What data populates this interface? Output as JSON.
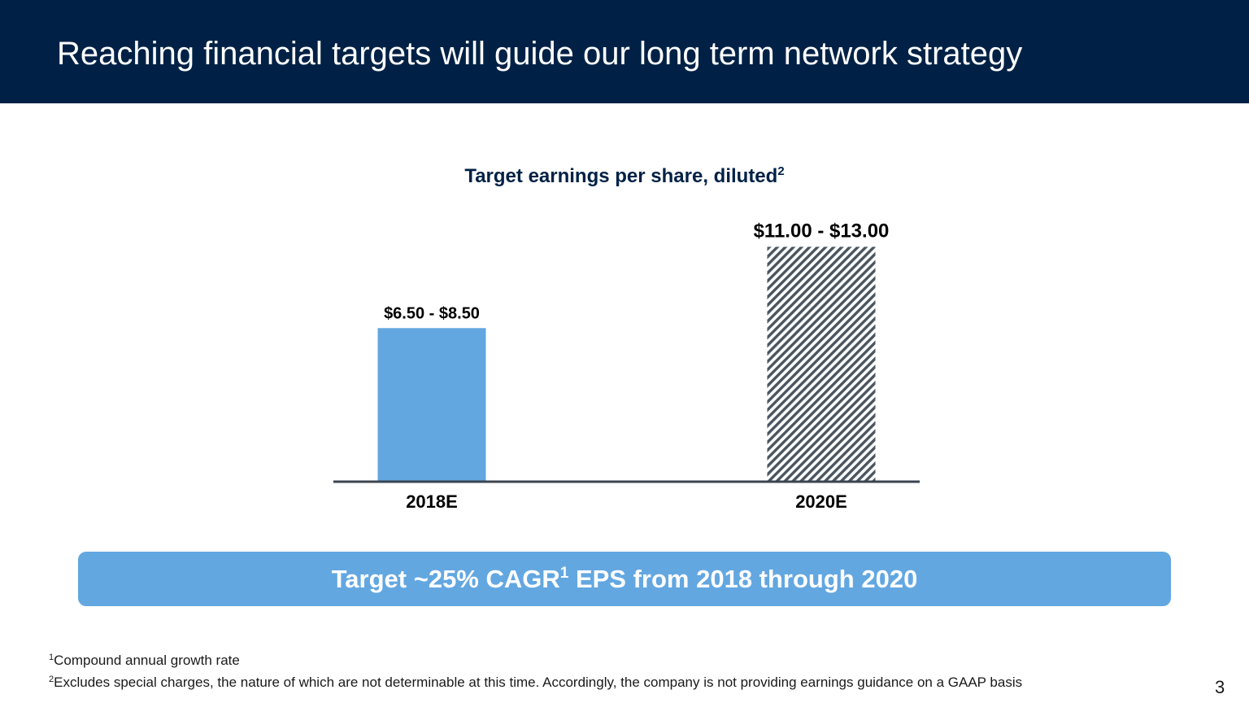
{
  "header": {
    "title": "Reaching financial targets will guide our long term network strategy"
  },
  "chart_title": {
    "text": "Target earnings per share, diluted",
    "sup": "2"
  },
  "chart_data": {
    "type": "bar",
    "title": "Target earnings per share, diluted",
    "categories": [
      "2018E",
      "2020E"
    ],
    "ranges": [
      [
        6.5,
        8.5
      ],
      [
        11.0,
        13.0
      ]
    ],
    "values": [
      8.5,
      13.0
    ],
    "labels": [
      "$6.50 - $8.50",
      "$11.00 - $13.00"
    ],
    "styles": [
      "solid",
      "hatched"
    ],
    "colors": [
      "#63a7e1",
      "#4a5560"
    ],
    "ylim": [
      0,
      13.6
    ],
    "grid": false
  },
  "banner": {
    "text_before": "Target ~25% CAGR",
    "sup": "1",
    "text_after": " EPS from 2018 through 2020"
  },
  "footnotes": [
    {
      "sup": "1",
      "text": "Compound annual growth rate"
    },
    {
      "sup": "2",
      "text": "Excludes special charges, the nature of which are not determinable at this time. Accordingly, the company is not providing earnings guidance on a GAAP basis"
    }
  ],
  "page_number": "3",
  "colors": {
    "header_bg": "#002145",
    "accent_blue": "#63a7e1",
    "hatch": "#4a5560",
    "axis": "#3a4450"
  }
}
